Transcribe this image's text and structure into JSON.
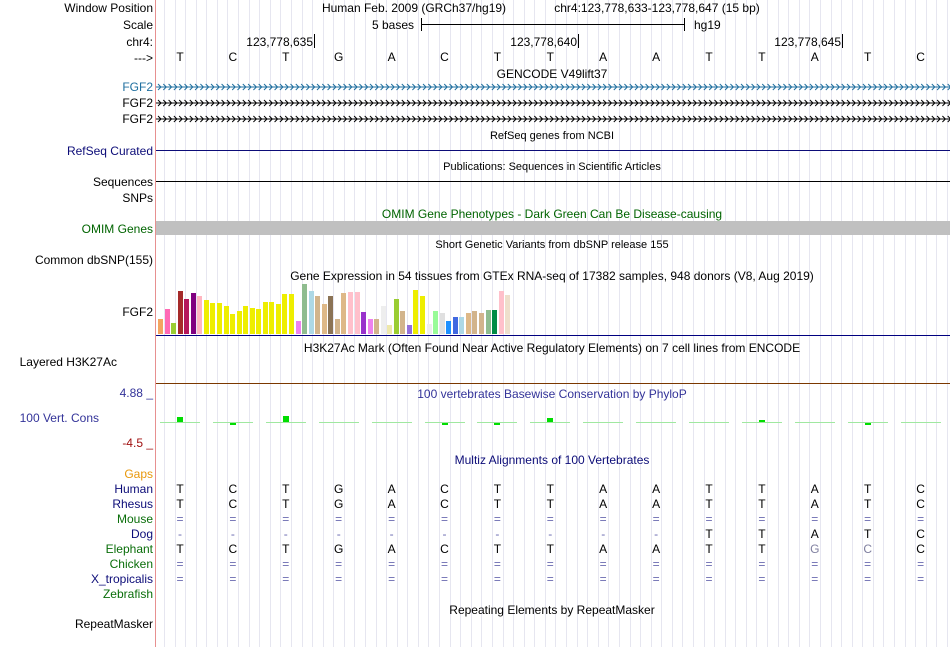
{
  "header": {
    "window_position_label": "Window Position",
    "scale_label": "Scale",
    "chrom_label": "chr4:",
    "strand_label": "--->",
    "assembly": "Human Feb. 2009 (GRCh37/hg19)",
    "position": "chr4:123,778,633-123,778,647 (15 bp)",
    "scale_bases": "5 bases",
    "scale_assembly": "hg19",
    "coordinates": [
      "123,778,635",
      "123,778,640",
      "123,778,645"
    ]
  },
  "sequence": [
    "T",
    "C",
    "T",
    "G",
    "A",
    "C",
    "T",
    "T",
    "A",
    "A",
    "T",
    "T",
    "A",
    "T",
    "C"
  ],
  "tracks": {
    "gencode": {
      "title": "GENCODE V49lift37",
      "genes": [
        "FGF2",
        "FGF2",
        "FGF2"
      ],
      "color": "#1f6f9f"
    },
    "refseq": {
      "title": "RefSeq genes from NCBI",
      "label": "RefSeq Curated",
      "color": "#0c0c78"
    },
    "publications": {
      "title": "Publications: Sequences in Scientific Articles",
      "label": "Sequences"
    },
    "snps": {
      "label": "SNPs"
    },
    "omim": {
      "title": "OMIM Gene Phenotypes - Dark Green Can Be Disease-causing",
      "label": "OMIM Genes",
      "color": "#006400",
      "bar_color": "#c0c0c0"
    },
    "dbsnp": {
      "title": "Short Genetic Variants from dbSNP release 155",
      "label": "Common dbSNP(155)"
    },
    "gtex": {
      "title": "Gene Expression in 54 tissues from GTEx RNA-seq of 17382 samples, 948 donors (V8, Aug 2019)",
      "label": "FGF2",
      "bars": [
        {
          "value": 0.3,
          "color": "#f4a460"
        },
        {
          "value": 0.5,
          "color": "#ff69b4"
        },
        {
          "value": 0.22,
          "color": "#9acd32"
        },
        {
          "value": 0.85,
          "color": "#a52a2a"
        },
        {
          "value": 0.7,
          "color": "#b5175b"
        },
        {
          "value": 0.82,
          "color": "#800080"
        },
        {
          "value": 0.76,
          "color": "#ffb6c1"
        },
        {
          "value": 0.68,
          "color": "#eeee00"
        },
        {
          "value": 0.62,
          "color": "#eeee00"
        },
        {
          "value": 0.62,
          "color": "#eeee00"
        },
        {
          "value": 0.56,
          "color": "#eeee00"
        },
        {
          "value": 0.4,
          "color": "#eeee00"
        },
        {
          "value": 0.46,
          "color": "#eeee00"
        },
        {
          "value": 0.56,
          "color": "#eeee00"
        },
        {
          "value": 0.52,
          "color": "#eeee00"
        },
        {
          "value": 0.5,
          "color": "#eeee00"
        },
        {
          "value": 0.64,
          "color": "#eeee00"
        },
        {
          "value": 0.64,
          "color": "#eeee00"
        },
        {
          "value": 0.6,
          "color": "#eeee00"
        },
        {
          "value": 0.8,
          "color": "#eeee00"
        },
        {
          "value": 0.8,
          "color": "#eeee00"
        },
        {
          "value": 0.26,
          "color": "#ee82ee"
        },
        {
          "value": 1.0,
          "color": "#8fbc8f"
        },
        {
          "value": 0.86,
          "color": "#add8e6"
        },
        {
          "value": 0.76,
          "color": "#d2b48c"
        },
        {
          "value": 0.6,
          "color": "#deb887"
        },
        {
          "value": 0.76,
          "color": "#8b7355"
        },
        {
          "value": 0.3,
          "color": "#d2b48c"
        },
        {
          "value": 0.82,
          "color": "#deb887"
        },
        {
          "value": 0.84,
          "color": "#ffc0cb"
        },
        {
          "value": 0.84,
          "color": "#ffc0cb"
        },
        {
          "value": 0.44,
          "color": "#9932cc"
        },
        {
          "value": 0.3,
          "color": "#ee82ee"
        },
        {
          "value": 0.3,
          "color": "#d2b48c"
        },
        {
          "value": 0.56,
          "color": "#eeeeee"
        },
        {
          "value": 0.18,
          "color": "#eee8aa"
        },
        {
          "value": 0.7,
          "color": "#9acd32"
        },
        {
          "value": 0.46,
          "color": "#d2b48c"
        },
        {
          "value": 0.18,
          "color": "#9370db"
        },
        {
          "value": 0.88,
          "color": "#eeee00"
        },
        {
          "value": 0.76,
          "color": "#eeee00"
        },
        {
          "value": 0.2,
          "color": "#eeeeee"
        },
        {
          "value": 0.46,
          "color": "#98fb98"
        },
        {
          "value": 0.42,
          "color": "#e0e0e0"
        },
        {
          "value": 0.26,
          "color": "#1e90ff"
        },
        {
          "value": 0.34,
          "color": "#4169e1"
        },
        {
          "value": 0.34,
          "color": "#add8e6"
        },
        {
          "value": 0.42,
          "color": "#deb887"
        },
        {
          "value": 0.46,
          "color": "#d2b48c"
        },
        {
          "value": 0.42,
          "color": "#d2b48c"
        },
        {
          "value": 0.48,
          "color": "#8fbc8f"
        },
        {
          "value": 0.48,
          "color": "#008b45"
        },
        {
          "value": 0.86,
          "color": "#ffc0cb"
        },
        {
          "value": 0.78,
          "color": "#eedfcc"
        }
      ]
    },
    "h3k27ac": {
      "title": "H3K27Ac Mark (Often Found Near Active Regulatory Elements) on 7 cell lines from ENCODE",
      "label": "Layered H3K27Ac",
      "line_color": "#7b3800"
    },
    "phylop": {
      "title": "100 vertebrates Basewise Conservation by PhyloP",
      "label": "100 Vert. Cons",
      "max_label": "4.88 _",
      "min_label": "-4.5 _",
      "label_color": "#333399",
      "max": 4.88,
      "min": -4.5,
      "scores": [
        0.4,
        -0.1,
        0.5,
        0,
        0,
        -0.1,
        -0.05,
        0.3,
        0,
        0,
        0,
        0.2,
        0,
        -0.2,
        0
      ],
      "mark_color": "#00dd00"
    },
    "multiz": {
      "title": "Multiz Alignments of 100 Vertebrates",
      "gaps_label": "Gaps",
      "gaps_color": "#e8980c",
      "species": [
        {
          "name": "Human",
          "color": "#0c0c78",
          "bases": [
            "T",
            "C",
            "T",
            "G",
            "A",
            "C",
            "T",
            "T",
            "A",
            "A",
            "T",
            "T",
            "A",
            "T",
            "C"
          ]
        },
        {
          "name": "Rhesus",
          "color": "#0c0c78",
          "bases": [
            "T",
            "C",
            "T",
            "G",
            "A",
            "C",
            "T",
            "T",
            "A",
            "A",
            "T",
            "T",
            "A",
            "T",
            "C"
          ]
        },
        {
          "name": "Mouse",
          "color": "#0a6e0a",
          "bases": [
            "=",
            "=",
            "=",
            "=",
            "=",
            "=",
            "=",
            "=",
            "=",
            "=",
            "=",
            "=",
            "=",
            "=",
            "="
          ]
        },
        {
          "name": "Dog",
          "color": "#0c0c78",
          "bases": [
            "-",
            "-",
            "-",
            "-",
            "-",
            "-",
            "-",
            "-",
            "-",
            "-",
            "T",
            "T",
            "A",
            "T",
            "C"
          ]
        },
        {
          "name": "Elephant",
          "color": "#0a6e0a",
          "bases": [
            "T",
            "C",
            "T",
            "G",
            "A",
            "C",
            "T",
            "T",
            "A",
            "A",
            "T",
            "T",
            "G",
            "C",
            "C"
          ]
        },
        {
          "name": "Chicken",
          "color": "#0a6e0a",
          "bases": [
            "=",
            "=",
            "=",
            "=",
            "=",
            "=",
            "=",
            "=",
            "=",
            "=",
            "=",
            "=",
            "=",
            "=",
            "="
          ]
        },
        {
          "name": "X_tropicalis",
          "color": "#0c0c78",
          "bases": [
            "=",
            "=",
            "=",
            "=",
            "=",
            "=",
            "=",
            "=",
            "=",
            "=",
            "=",
            "=",
            "=",
            "=",
            "="
          ]
        },
        {
          "name": "Zebrafish",
          "color": "#0a6e0a",
          "bases": [
            "",
            "",
            "",
            "",
            "",
            "",
            "",
            "",
            "",
            "",
            "",
            "",
            "",
            "",
            ""
          ]
        }
      ]
    },
    "repeatmasker": {
      "title": "Repeating Elements by RepeatMasker",
      "label": "RepeatMasker"
    }
  }
}
